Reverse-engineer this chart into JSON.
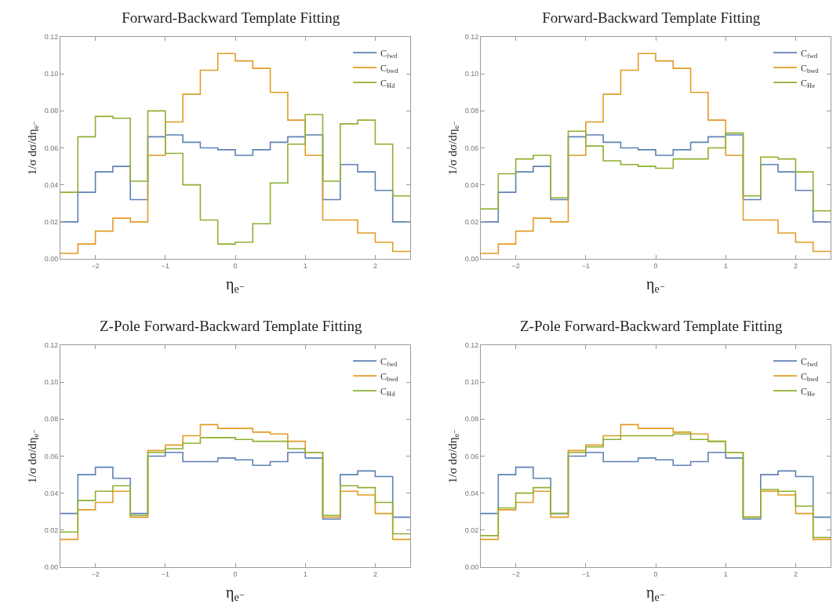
{
  "chart_data": [
    {
      "type": "histogram",
      "title": "Forward-Backward Template Fitting",
      "xlabel": "η$_{e⁻}$",
      "ylabel": "1/σ dσ/dη$_{e⁻}$",
      "bins": [
        -2.5,
        -2.25,
        -2,
        -1.75,
        -1.5,
        -1.25,
        -1,
        -0.75,
        -0.5,
        -0.25,
        0,
        0.25,
        0.5,
        0.75,
        1,
        1.25,
        1.5,
        1.75,
        2,
        2.25,
        2.5
      ],
      "series": [
        {
          "name": "C$_{fwd}$",
          "color": "#5e81b5",
          "values": [
            0.02,
            0.036,
            0.047,
            0.05,
            0.032,
            0.066,
            0.067,
            0.063,
            0.06,
            0.059,
            0.056,
            0.059,
            0.063,
            0.066,
            0.067,
            0.032,
            0.051,
            0.047,
            0.037,
            0.02
          ]
        },
        {
          "name": "C$_{bwd}$",
          "color": "#e19c24",
          "values": [
            0.003,
            0.008,
            0.015,
            0.022,
            0.02,
            0.056,
            0.074,
            0.089,
            0.102,
            0.111,
            0.107,
            0.103,
            0.09,
            0.075,
            0.056,
            0.021,
            0.021,
            0.014,
            0.009,
            0.004
          ]
        },
        {
          "name": "C$_{Hd}$",
          "color": "#8fb032",
          "values": [
            0.036,
            0.066,
            0.077,
            0.076,
            0.042,
            0.08,
            0.057,
            0.04,
            0.021,
            0.008,
            0.009,
            0.019,
            0.041,
            0.062,
            0.078,
            0.042,
            0.073,
            0.075,
            0.062,
            0.034
          ]
        }
      ],
      "xlim": [
        -2.5,
        2.5
      ],
      "xticks": [
        -2,
        -1,
        0,
        1,
        2
      ],
      "ylim": [
        0,
        0.12
      ],
      "yticks": [
        {
          "value": 0,
          "label": "0.00"
        },
        {
          "value": 0.02,
          "label": "0.02"
        },
        {
          "value": 0.04,
          "label": "0.04"
        },
        {
          "value": 0.06,
          "label": "0.06"
        },
        {
          "value": 0.08,
          "label": "0.08"
        },
        {
          "value": 0.1,
          "label": "0.10"
        },
        {
          "value": 0.12,
          "label": "0.12"
        }
      ],
      "legend": "top right",
      "grid": false
    },
    {
      "type": "histogram",
      "title": "Forward-Backward Template Fitting",
      "xlabel": "η$_{e⁻}$",
      "ylabel": "1/σ dσ/dη$_{e⁻}$",
      "bins": [
        -2.5,
        -2.25,
        -2,
        -1.75,
        -1.5,
        -1.25,
        -1,
        -0.75,
        -0.5,
        -0.25,
        0,
        0.25,
        0.5,
        0.75,
        1,
        1.25,
        1.5,
        1.75,
        2,
        2.25,
        2.5
      ],
      "series": [
        {
          "name": "C$_{fwd}$",
          "color": "#5e81b5",
          "values": [
            0.02,
            0.036,
            0.047,
            0.05,
            0.032,
            0.066,
            0.067,
            0.063,
            0.06,
            0.059,
            0.056,
            0.059,
            0.063,
            0.066,
            0.067,
            0.032,
            0.051,
            0.047,
            0.037,
            0.02
          ]
        },
        {
          "name": "C$_{bwd}$",
          "color": "#e19c24",
          "values": [
            0.003,
            0.008,
            0.015,
            0.022,
            0.02,
            0.056,
            0.074,
            0.089,
            0.102,
            0.111,
            0.107,
            0.103,
            0.09,
            0.075,
            0.056,
            0.021,
            0.021,
            0.014,
            0.009,
            0.004
          ]
        },
        {
          "name": "C$_{He}$",
          "color": "#8fb032",
          "values": [
            0.027,
            0.046,
            0.054,
            0.056,
            0.033,
            0.069,
            0.061,
            0.053,
            0.051,
            0.05,
            0.049,
            0.054,
            0.054,
            0.06,
            0.068,
            0.034,
            0.055,
            0.054,
            0.047,
            0.026
          ]
        }
      ],
      "xlim": [
        -2.5,
        2.5
      ],
      "xticks": [
        -2,
        -1,
        0,
        1,
        2
      ],
      "ylim": [
        0,
        0.12
      ],
      "yticks": [
        {
          "value": 0,
          "label": "0.00"
        },
        {
          "value": 0.02,
          "label": "0.02"
        },
        {
          "value": 0.04,
          "label": "0.04"
        },
        {
          "value": 0.06,
          "label": "0.06"
        },
        {
          "value": 0.08,
          "label": "0.08"
        },
        {
          "value": 0.1,
          "label": "0.10"
        },
        {
          "value": 0.12,
          "label": "0.12"
        }
      ],
      "legend": "top right",
      "grid": false
    },
    {
      "type": "histogram",
      "title": "Z-Pole Forward-Backward Template Fitting",
      "xlabel": "η$_{e⁻}$",
      "ylabel": "1/σ dσ/dη$_{e⁻}$",
      "bins": [
        -2.5,
        -2.25,
        -2,
        -1.75,
        -1.5,
        -1.25,
        -1,
        -0.75,
        -0.5,
        -0.25,
        0,
        0.25,
        0.5,
        0.75,
        1,
        1.25,
        1.5,
        1.75,
        2,
        2.25,
        2.5
      ],
      "series": [
        {
          "name": "C$_{fwd}$",
          "color": "#5e81b5",
          "values": [
            0.029,
            0.05,
            0.054,
            0.048,
            0.029,
            0.06,
            0.062,
            0.057,
            0.057,
            0.059,
            0.058,
            0.055,
            0.057,
            0.062,
            0.059,
            0.026,
            0.05,
            0.052,
            0.049,
            0.027
          ]
        },
        {
          "name": "C$_{bwd}$",
          "color": "#e19c24",
          "values": [
            0.015,
            0.031,
            0.035,
            0.041,
            0.027,
            0.063,
            0.066,
            0.071,
            0.077,
            0.075,
            0.075,
            0.073,
            0.072,
            0.068,
            0.062,
            0.027,
            0.041,
            0.039,
            0.029,
            0.015
          ]
        },
        {
          "name": "C$_{Hd}$",
          "color": "#8fb032",
          "values": [
            0.019,
            0.036,
            0.041,
            0.044,
            0.028,
            0.062,
            0.064,
            0.067,
            0.07,
            0.07,
            0.069,
            0.068,
            0.068,
            0.064,
            0.062,
            0.028,
            0.044,
            0.043,
            0.035,
            0.018
          ]
        }
      ],
      "xlim": [
        -2.5,
        2.5
      ],
      "xticks": [
        -2,
        -1,
        0,
        1,
        2
      ],
      "ylim": [
        0,
        0.12
      ],
      "yticks": [
        {
          "value": 0,
          "label": "0.00"
        },
        {
          "value": 0.02,
          "label": "0.02"
        },
        {
          "value": 0.04,
          "label": "0.04"
        },
        {
          "value": 0.06,
          "label": "0.06"
        },
        {
          "value": 0.08,
          "label": "0.08"
        },
        {
          "value": 0.1,
          "label": "0.10"
        },
        {
          "value": 0.12,
          "label": "0.12"
        }
      ],
      "legend": "top right",
      "grid": false
    },
    {
      "type": "histogram",
      "title": "Z-Pole Forward-Backward Template Fitting",
      "xlabel": "η$_{e⁻}$",
      "ylabel": "1/σ dσ/dη$_{e⁻}$",
      "bins": [
        -2.5,
        -2.25,
        -2,
        -1.75,
        -1.5,
        -1.25,
        -1,
        -0.75,
        -0.5,
        -0.25,
        0,
        0.25,
        0.5,
        0.75,
        1,
        1.25,
        1.5,
        1.75,
        2,
        2.25,
        2.5
      ],
      "series": [
        {
          "name": "C$_{fwd}$",
          "color": "#5e81b5",
          "values": [
            0.029,
            0.05,
            0.054,
            0.048,
            0.029,
            0.06,
            0.062,
            0.057,
            0.057,
            0.059,
            0.058,
            0.055,
            0.057,
            0.062,
            0.059,
            0.026,
            0.05,
            0.052,
            0.049,
            0.027
          ]
        },
        {
          "name": "C$_{bwd}$",
          "color": "#e19c24",
          "values": [
            0.015,
            0.031,
            0.035,
            0.041,
            0.027,
            0.063,
            0.066,
            0.071,
            0.077,
            0.075,
            0.075,
            0.073,
            0.072,
            0.068,
            0.062,
            0.027,
            0.041,
            0.039,
            0.029,
            0.015
          ]
        },
        {
          "name": "C$_{He}$",
          "color": "#8fb032",
          "values": [
            0.017,
            0.032,
            0.04,
            0.043,
            0.029,
            0.062,
            0.065,
            0.069,
            0.071,
            0.071,
            0.071,
            0.072,
            0.069,
            0.068,
            0.062,
            0.027,
            0.042,
            0.041,
            0.033,
            0.016
          ]
        }
      ],
      "xlim": [
        -2.5,
        2.5
      ],
      "xticks": [
        -2,
        -1,
        0,
        1,
        2
      ],
      "ylim": [
        0,
        0.12
      ],
      "yticks": [
        {
          "value": 0,
          "label": "0.00"
        },
        {
          "value": 0.02,
          "label": "0.02"
        },
        {
          "value": 0.04,
          "label": "0.04"
        },
        {
          "value": 0.06,
          "label": "0.06"
        },
        {
          "value": 0.08,
          "label": "0.08"
        },
        {
          "value": 0.1,
          "label": "0.10"
        },
        {
          "value": 0.12,
          "label": "0.12"
        }
      ],
      "legend": "top right",
      "grid": false
    }
  ]
}
